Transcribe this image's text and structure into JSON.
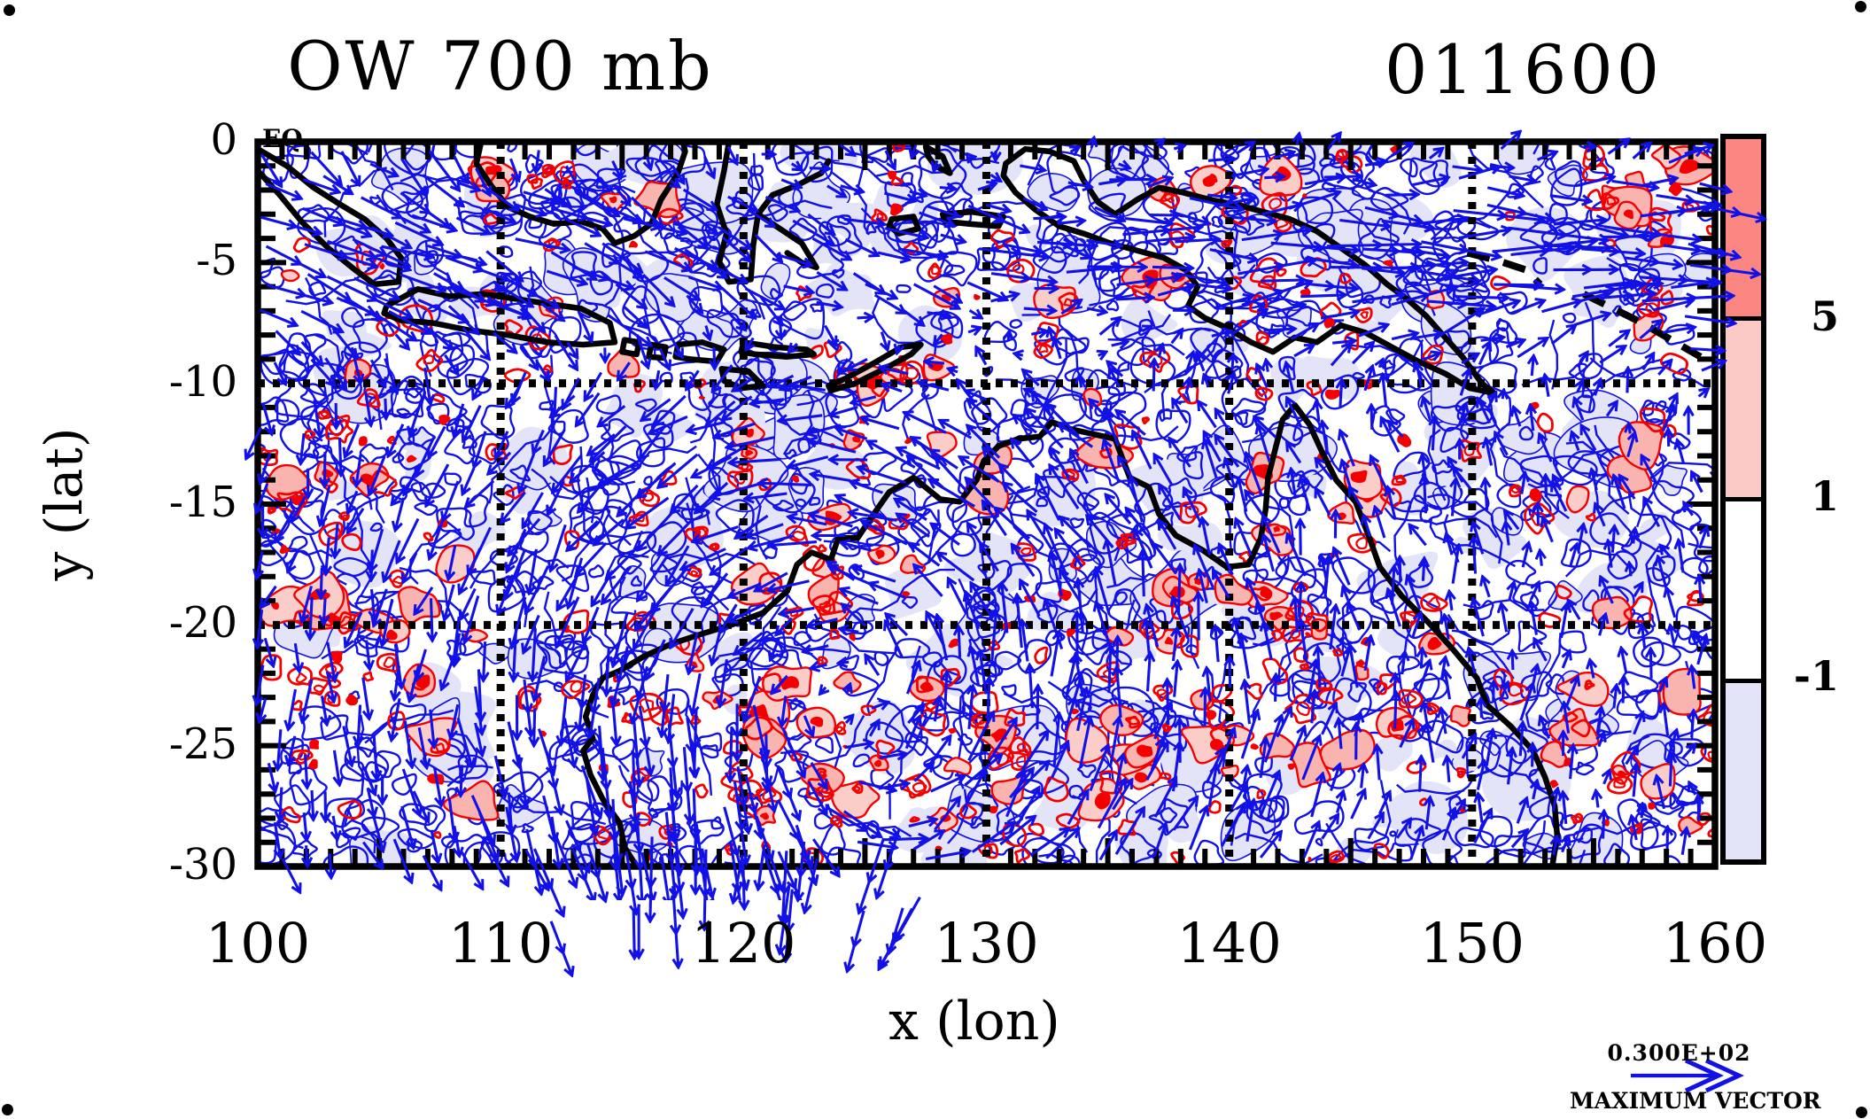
{
  "header": {
    "title": "OW 700 mb",
    "datetime": "011600"
  },
  "axes": {
    "x_label": "x (lon)",
    "y_label": "y (lat)",
    "x_tick_labels": [
      "100",
      "110",
      "120",
      "130",
      "140",
      "150",
      "160"
    ],
    "y_tick_labels": [
      "0",
      "-5",
      "-10",
      "-15",
      "-20",
      "-25",
      "-30"
    ],
    "equator_label": "EQ"
  },
  "colorbar": {
    "tick_labels": [
      "5",
      "1",
      "-1"
    ],
    "segment_colors": [
      "#fa8581",
      "#fccac6",
      "#ffffff",
      "#e4e4f8"
    ]
  },
  "legend": {
    "max_vector_value": "0.300E+02",
    "max_vector_label": "MAXIMUM VECTOR"
  },
  "style_colors": {
    "vector_blue": "#1111e8",
    "contour_red": "#f40000",
    "pink_fill": "#fab4af",
    "light_pink_fill": "#fbcdc9",
    "lavender_fill": "#e4e4f8",
    "coast_black": "#000000"
  },
  "chart_data": {
    "type": "vector-contour-map",
    "title": "OW 700 mb",
    "time_label": "011600",
    "xlabel": "x (lon)",
    "ylabel": "y (lat)",
    "xlim": [
      100,
      160
    ],
    "ylim": [
      -30,
      0
    ],
    "x_ticks": [
      100,
      110,
      120,
      130,
      140,
      150,
      160
    ],
    "y_ticks": [
      0,
      -5,
      -10,
      -15,
      -20,
      -25,
      -30
    ],
    "grid": "dotted black gridlines every 10 degrees",
    "equator_annotation": "EQ",
    "colorbar_levels_top_to_bottom": [
      5,
      1,
      -1
    ],
    "colorbar_colors_top_to_bottom": [
      "#fa8581",
      "#fccac6",
      "#ffffff",
      "#e4e4f8"
    ],
    "max_vector": {
      "text": "0.300E+02",
      "value": 30
    },
    "vector_color": "#1111e8",
    "positive_contour_color": "#f40000",
    "negative_contour_color": "#1111e8"
  }
}
